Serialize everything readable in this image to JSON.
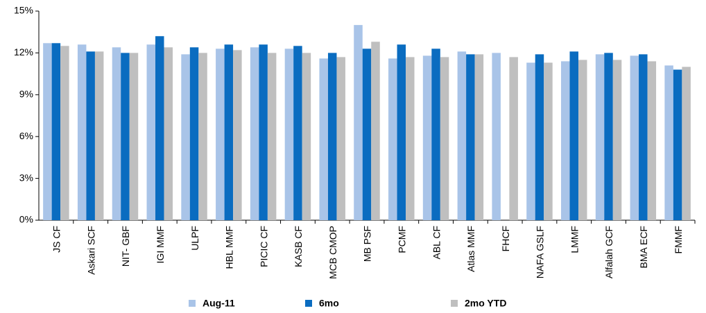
{
  "chart_data": {
    "type": "bar",
    "categories": [
      "JS CF",
      "Askari SCF",
      "NIT- GBF",
      "IGI MMF",
      "ULPF",
      "HBL MMF",
      "PICIC CF",
      "KASB CF",
      "MCB CMOP",
      "MB PSF",
      "PCMF",
      "ABL CF",
      "Atlas MMF",
      "FHCF",
      "NAFA GSLF",
      "LMMF",
      "Alfalah GCF",
      "BMA ECF",
      "FMMF"
    ],
    "series": [
      {
        "name": "Aug-11",
        "color": "#a9c4e8",
        "values": [
          12.7,
          12.6,
          12.4,
          12.6,
          11.9,
          12.3,
          12.4,
          12.3,
          11.6,
          14.0,
          11.6,
          11.8,
          12.1,
          12.0,
          11.3,
          11.4,
          11.9,
          11.8,
          11.1
        ]
      },
      {
        "name": "6mo",
        "color": "#0a6cc0",
        "values": [
          12.7,
          12.1,
          12.0,
          13.2,
          12.4,
          12.6,
          12.6,
          12.5,
          12.0,
          12.3,
          12.6,
          12.3,
          11.9,
          null,
          11.9,
          12.1,
          12.0,
          11.9,
          10.8
        ]
      },
      {
        "name": "2mo YTD",
        "color": "#bfbfbf",
        "values": [
          12.5,
          12.1,
          12.0,
          12.4,
          12.0,
          12.2,
          12.0,
          12.0,
          11.7,
          12.8,
          11.7,
          11.7,
          11.9,
          11.7,
          11.3,
          11.5,
          11.5,
          11.4,
          11.0
        ]
      }
    ],
    "ylim": [
      0,
      15
    ],
    "yticks": [
      {
        "value": 0,
        "label": "0%"
      },
      {
        "value": 3,
        "label": "3%"
      },
      {
        "value": 6,
        "label": "6%"
      },
      {
        "value": 9,
        "label": "9%"
      },
      {
        "value": 12,
        "label": "12%"
      },
      {
        "value": 15,
        "label": "15%"
      }
    ],
    "grid": false,
    "legend": "bottom"
  }
}
